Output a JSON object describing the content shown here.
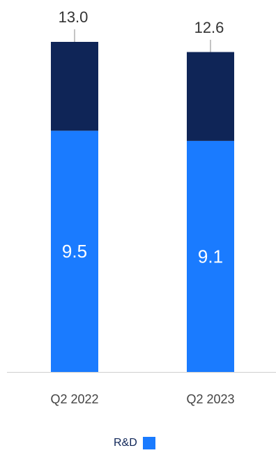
{
  "chart_data": {
    "type": "bar",
    "stacked": true,
    "categories": [
      "Q2 2022",
      "Q2 2023"
    ],
    "series": [
      {
        "name": "R&D",
        "values": [
          9.5,
          9.1
        ],
        "color": "#1a7bff",
        "label_color": "#ffffff"
      },
      {
        "values": [
          3.5,
          3.5
        ],
        "color": "#0f2557"
      }
    ],
    "totals": [
      13.0,
      12.6
    ],
    "total_labels": [
      "13.0",
      "12.6"
    ],
    "segment_labels": [
      "9.5",
      "9.1"
    ],
    "ylim": [
      0,
      13.0
    ],
    "legend": {
      "position": "bottom",
      "entries": [
        {
          "label": "R&D",
          "color": "#1a7bff"
        }
      ]
    },
    "colors": {
      "axis": "#cfcfcf",
      "tick_text": "#444444",
      "total_text": "#333333",
      "leader": "#888888"
    }
  }
}
